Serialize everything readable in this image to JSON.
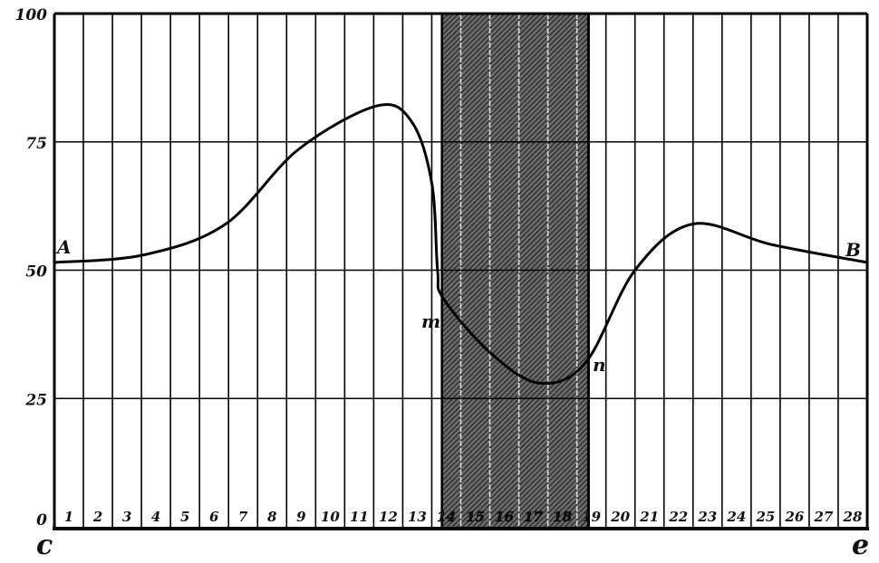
{
  "chart_data": {
    "type": "line",
    "title": "",
    "xlabel": "",
    "ylabel": "",
    "xlim": [
      0,
      28
    ],
    "ylim": [
      0,
      100
    ],
    "grid": true,
    "y_ticks": [
      "0",
      "25",
      "50",
      "75",
      "100"
    ],
    "x_ticks": [
      "1",
      "2",
      "3",
      "4",
      "5",
      "6",
      "7",
      "8",
      "9",
      "10",
      "11",
      "12",
      "13",
      "14",
      "15",
      "16",
      "17",
      "18",
      "19",
      "20",
      "21",
      "22",
      "23",
      "24",
      "25",
      "26",
      "27",
      "28"
    ],
    "shaded_region": {
      "from": 13.35,
      "to": 18.4,
      "color": "#333333"
    },
    "series": [
      {
        "x": [
          0,
          3.1,
          5.9,
          8.4,
          11.1,
          12.3,
          13.0,
          13.2,
          13.4,
          15.0,
          16.7,
          18.3,
          20.0,
          22.0,
          24.7,
          28
        ],
        "y": [
          51.5,
          53,
          59,
          73.5,
          82,
          79,
          67,
          50,
          44.5,
          34,
          28,
          32,
          50,
          59,
          55,
          51.5
        ],
        "color": "#000000"
      }
    ],
    "annotations": {
      "A": "A",
      "B": "B",
      "m": "m",
      "n": "n",
      "left_corner": "c",
      "right_corner": "e"
    }
  }
}
